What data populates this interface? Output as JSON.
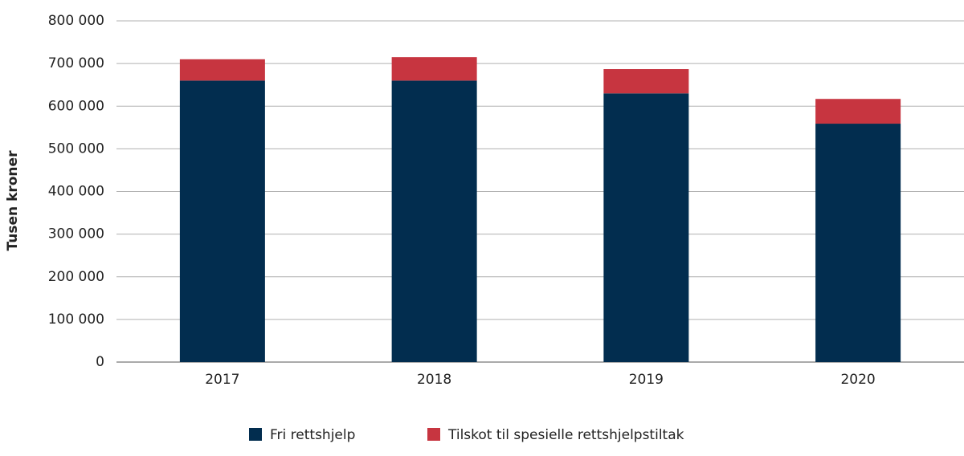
{
  "chart_data": {
    "type": "stacked_bar",
    "y_label": "Tusen kroner",
    "categories": [
      "2017",
      "2018",
      "2019",
      "2020"
    ],
    "series": [
      {
        "name": "Fri rettshjelp",
        "color": "#022d4f",
        "values": [
          660000,
          660000,
          630000,
          559000
        ]
      },
      {
        "name": "Tilskot til spesielle rettshjelpstiltak",
        "color": "#c73540",
        "values": [
          50000,
          55000,
          57000,
          58000
        ]
      }
    ],
    "ylim": [
      0,
      800000
    ],
    "yticks": [
      0,
      {
        "value": 100000,
        "label": "100 000"
      },
      {
        "value": 200000,
        "label": "200 000"
      },
      {
        "value": 300000,
        "label": "300 000"
      },
      {
        "value": 400000,
        "label": "400 000"
      },
      {
        "value": 500000,
        "label": "500 000"
      },
      {
        "value": 600000,
        "label": "600 000"
      },
      {
        "value": 700000,
        "label": "700 000"
      },
      {
        "value": 800000,
        "label": "800 000"
      }
    ],
    "grid": true,
    "legend": "bottom"
  }
}
